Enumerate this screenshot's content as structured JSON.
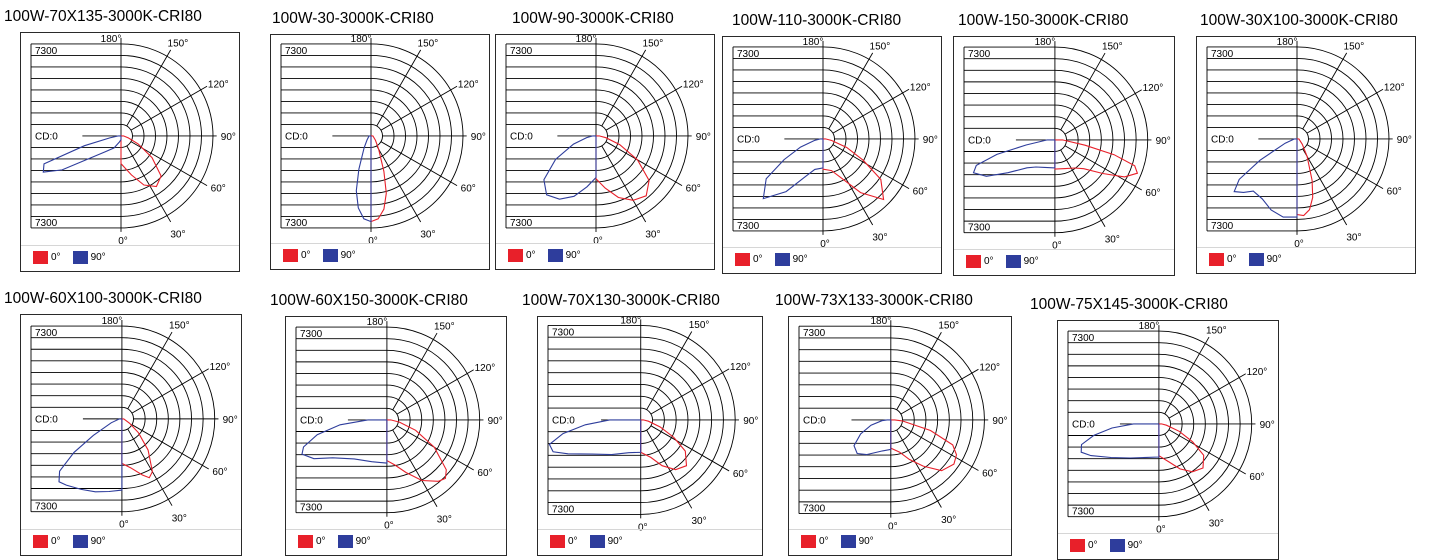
{
  "colors": {
    "c0": "#e8202a",
    "c90": "#2e3d9c",
    "grid": "#000000"
  },
  "legend": {
    "c0_label": "0°",
    "c90_label": "90°"
  },
  "polar_labels": {
    "top_value": "7300",
    "bottom_value": "7300",
    "center": "CD:0",
    "a180": "180°",
    "a150": "150°",
    "a120": "120°",
    "a90": "90°",
    "a60": "60°",
    "a30": "30°",
    "a0": "0°"
  },
  "chart_data": [
    {
      "type": "polar",
      "title": "100W-70X135-3000K-CRI80",
      "max": 7300,
      "series": [
        {
          "name": "0°",
          "angles": [
            0,
            15,
            25,
            35,
            45,
            55,
            65,
            75,
            90
          ],
          "values": [
            2200,
            3200,
            4300,
            4900,
            4500,
            3000,
            1500,
            600,
            200
          ]
        },
        {
          "name": "90°",
          "angles": [
            0,
            15,
            30,
            45,
            55,
            60,
            65,
            70,
            75,
            80,
            90
          ],
          "values": [
            300,
            500,
            1100,
            1800,
            3200,
            5400,
            6800,
            6500,
            3000,
            900,
            200
          ]
        }
      ]
    },
    {
      "type": "polar",
      "title": "100W-30-3000K-CRI80",
      "max": 7300,
      "series": [
        {
          "name": "0°",
          "angles": [
            0,
            5,
            10,
            15,
            20,
            30,
            45,
            90
          ],
          "values": [
            6800,
            6600,
            5900,
            4700,
            3000,
            1200,
            500,
            150
          ]
        },
        {
          "name": "90°",
          "angles": [
            0,
            5,
            10,
            15,
            20,
            30,
            45,
            90
          ],
          "values": [
            6800,
            6600,
            5800,
            4500,
            2800,
            1100,
            450,
            150
          ]
        }
      ]
    },
    {
      "type": "polar",
      "title": "100W-90-3000K-CRI80",
      "max": 7300,
      "series": [
        {
          "name": "0°",
          "angles": [
            0,
            10,
            20,
            30,
            40,
            50,
            60,
            70,
            80,
            90
          ],
          "values": [
            3400,
            4200,
            5200,
            5900,
            6200,
            5500,
            3800,
            2000,
            800,
            250
          ]
        },
        {
          "name": "90°",
          "angles": [
            0,
            10,
            20,
            30,
            40,
            50,
            60,
            70,
            80,
            90
          ],
          "values": [
            3300,
            4100,
            5100,
            5800,
            6100,
            5400,
            3700,
            1900,
            750,
            250
          ]
        }
      ]
    },
    {
      "type": "polar",
      "title": "100W-110-3000K-CRI80",
      "max": 7300,
      "series": [
        {
          "name": "0°",
          "angles": [
            0,
            15,
            25,
            35,
            45,
            55,
            62,
            70,
            80,
            90
          ],
          "values": [
            2400,
            2600,
            3400,
            5200,
            6800,
            5600,
            3600,
            2000,
            700,
            200
          ]
        },
        {
          "name": "90°",
          "angles": [
            0,
            15,
            25,
            35,
            45,
            55,
            62,
            70,
            80,
            90
          ],
          "values": [
            2300,
            2500,
            3300,
            5100,
            6700,
            5500,
            3500,
            1900,
            650,
            200
          ]
        }
      ]
    },
    {
      "type": "polar",
      "title": "100W-150-3000K-CRI80",
      "max": 7300,
      "series": [
        {
          "name": "0°",
          "angles": [
            0,
            20,
            35,
            45,
            55,
            62,
            68,
            72,
            76,
            80,
            90
          ],
          "values": [
            2300,
            2400,
            2700,
            3200,
            4600,
            6200,
            7000,
            6600,
            4800,
            2400,
            600
          ]
        },
        {
          "name": "90°",
          "angles": [
            0,
            20,
            35,
            45,
            55,
            62,
            68,
            72,
            76,
            80,
            90
          ],
          "values": [
            2200,
            2300,
            2600,
            3100,
            4500,
            6100,
            6900,
            6500,
            4700,
            2300,
            600
          ]
        }
      ]
    },
    {
      "type": "polar",
      "title": "100W-30X100-3000K-CRI80",
      "max": 7300,
      "series": [
        {
          "name": "0°",
          "angles": [
            0,
            5,
            10,
            15,
            20,
            30,
            45,
            90
          ],
          "values": [
            6000,
            6100,
            5700,
            4800,
            3500,
            1600,
            600,
            150
          ]
        },
        {
          "name": "90°",
          "angles": [
            0,
            10,
            20,
            30,
            40,
            45,
            50,
            55,
            60,
            70,
            90
          ],
          "values": [
            6200,
            6300,
            6000,
            5500,
            5400,
            6000,
            6500,
            5600,
            3400,
            1000,
            200
          ]
        }
      ]
    },
    {
      "type": "polar",
      "title": "100W-60X100-3000K-CRI80",
      "max": 7300,
      "series": [
        {
          "name": "0°",
          "angles": [
            0,
            10,
            20,
            25,
            30,
            40,
            50,
            60,
            90
          ],
          "values": [
            3500,
            3900,
            4700,
            5100,
            4800,
            3200,
            1700,
            700,
            150
          ]
        },
        {
          "name": "90°",
          "angles": [
            0,
            10,
            20,
            30,
            40,
            45,
            50,
            55,
            60,
            70,
            90
          ],
          "values": [
            5600,
            5800,
            6100,
            6400,
            6800,
            7000,
            6400,
            4600,
            2600,
            900,
            200
          ]
        }
      ]
    },
    {
      "type": "polar",
      "title": "100W-60X150-3000K-CRI80",
      "max": 7300,
      "series": [
        {
          "name": "0°",
          "angles": [
            0,
            10,
            20,
            30,
            40,
            45,
            50,
            60,
            70,
            80,
            90
          ],
          "values": [
            3200,
            3600,
            4400,
            5500,
            6300,
            6500,
            6100,
            4300,
            2400,
            1000,
            300
          ]
        },
        {
          "name": "90°",
          "angles": [
            0,
            20,
            40,
            55,
            62,
            68,
            72,
            78,
            84,
            90
          ],
          "values": [
            3400,
            3500,
            4000,
            5200,
            6500,
            7200,
            6900,
            5600,
            3700,
            1500
          ]
        }
      ]
    },
    {
      "type": "polar",
      "title": "100W-70X130-3000K-CRI80",
      "max": 7300,
      "series": [
        {
          "name": "0°",
          "angles": [
            0,
            15,
            25,
            35,
            45,
            55,
            62,
            70,
            80,
            90
          ],
          "values": [
            2500,
            3000,
            3900,
            4700,
            5000,
            4200,
            2900,
            1600,
            600,
            200
          ]
        },
        {
          "name": "90°",
          "angles": [
            0,
            20,
            40,
            55,
            65,
            70,
            75,
            80,
            85,
            90
          ],
          "values": [
            2500,
            2700,
            3500,
            4600,
            6200,
            7200,
            7300,
            6100,
            4300,
            2400
          ]
        }
      ]
    },
    {
      "type": "polar",
      "title": "100W-73X133-3000K-CRI80",
      "max": 7300,
      "series": [
        {
          "name": "0°",
          "angles": [
            0,
            15,
            25,
            35,
            45,
            55,
            62,
            68,
            75,
            85,
            90
          ],
          "values": [
            2200,
            2600,
            3400,
            4400,
            5600,
            6000,
            5800,
            5200,
            3200,
            900,
            300
          ]
        },
        {
          "name": "90°",
          "angles": [
            0,
            15,
            25,
            35,
            45,
            55,
            65,
            75,
            85,
            90
          ],
          "values": [
            2300,
            2500,
            2800,
            3300,
            3700,
            3500,
            2600,
            1600,
            700,
            300
          ]
        }
      ]
    },
    {
      "type": "polar",
      "title": "100W-75X145-3000K-CRI80",
      "max": 7300,
      "series": [
        {
          "name": "0°",
          "angles": [
            0,
            15,
            25,
            35,
            45,
            55,
            62,
            70,
            80,
            90
          ],
          "values": [
            2500,
            3100,
            3900,
            4600,
            4900,
            4300,
            3000,
            1700,
            600,
            200
          ]
        },
        {
          "name": "90°",
          "angles": [
            0,
            20,
            40,
            55,
            65,
            70,
            75,
            80,
            85,
            90
          ],
          "values": [
            2600,
            2800,
            3500,
            4600,
            5900,
            6500,
            6300,
            5200,
            3700,
            2000
          ]
        }
      ]
    }
  ]
}
